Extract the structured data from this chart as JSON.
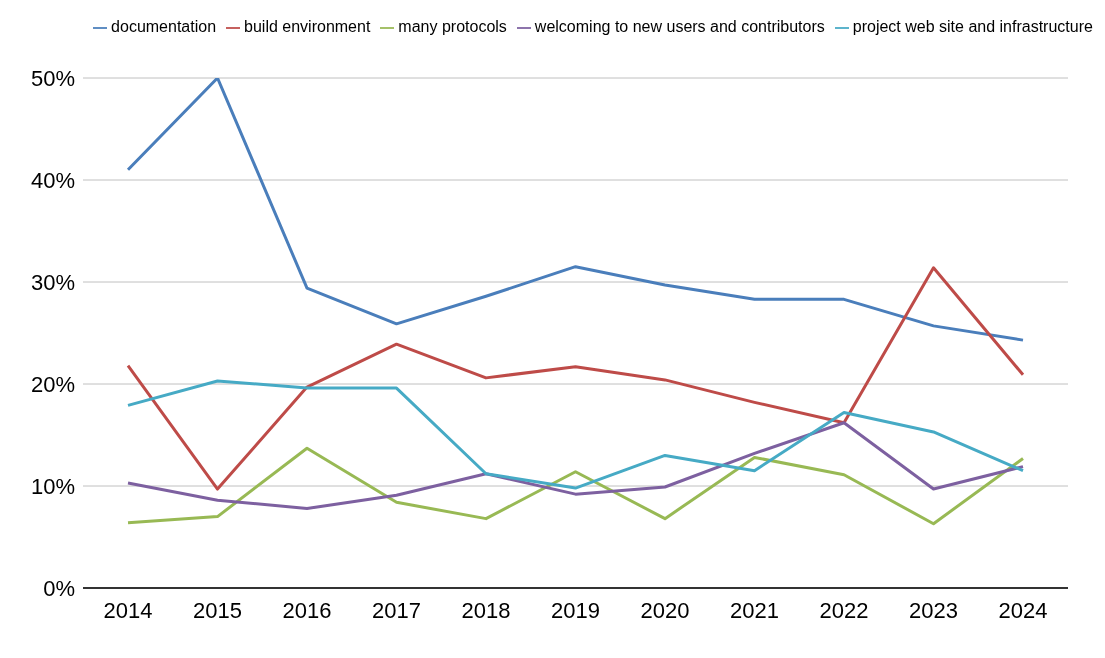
{
  "chart_data": {
    "type": "line",
    "categories": [
      "2014",
      "2015",
      "2016",
      "2017",
      "2018",
      "2019",
      "2020",
      "2021",
      "2022",
      "2023",
      "2024"
    ],
    "series": [
      {
        "name": "documentation",
        "color": "#4a7ebb",
        "values": [
          41.0,
          50.0,
          29.4,
          25.9,
          28.6,
          31.5,
          29.7,
          28.3,
          28.3,
          25.7,
          24.3
        ]
      },
      {
        "name": "build environment",
        "color": "#be4b48",
        "values": [
          21.8,
          9.7,
          19.7,
          23.9,
          20.6,
          21.7,
          20.4,
          18.2,
          16.2,
          31.4,
          20.9
        ]
      },
      {
        "name": "many protocols",
        "color": "#98b954",
        "values": [
          6.4,
          7.0,
          13.7,
          8.4,
          6.8,
          11.4,
          6.8,
          12.8,
          11.1,
          6.3,
          12.7
        ]
      },
      {
        "name": "welcoming to new users and contributors",
        "color": "#7d60a0",
        "values": [
          10.3,
          8.6,
          7.8,
          9.1,
          11.2,
          9.2,
          9.9,
          13.2,
          16.2,
          9.7,
          11.9
        ]
      },
      {
        "name": "project web site and infrastructure",
        "color": "#46aac5",
        "values": [
          17.9,
          20.3,
          19.6,
          19.6,
          11.2,
          9.8,
          13.0,
          11.5,
          17.2,
          15.3,
          11.5
        ]
      }
    ],
    "ylim": [
      0,
      50
    ],
    "yticks": [
      {
        "value": 0,
        "label": "0%"
      },
      {
        "value": 10,
        "label": "10%"
      },
      {
        "value": 20,
        "label": "20%"
      },
      {
        "value": 30,
        "label": "30%"
      },
      {
        "value": 40,
        "label": "40%"
      },
      {
        "value": 50,
        "label": "50%"
      }
    ],
    "grid": "y",
    "legend": "top",
    "marker": "none",
    "line_style": "solid"
  }
}
